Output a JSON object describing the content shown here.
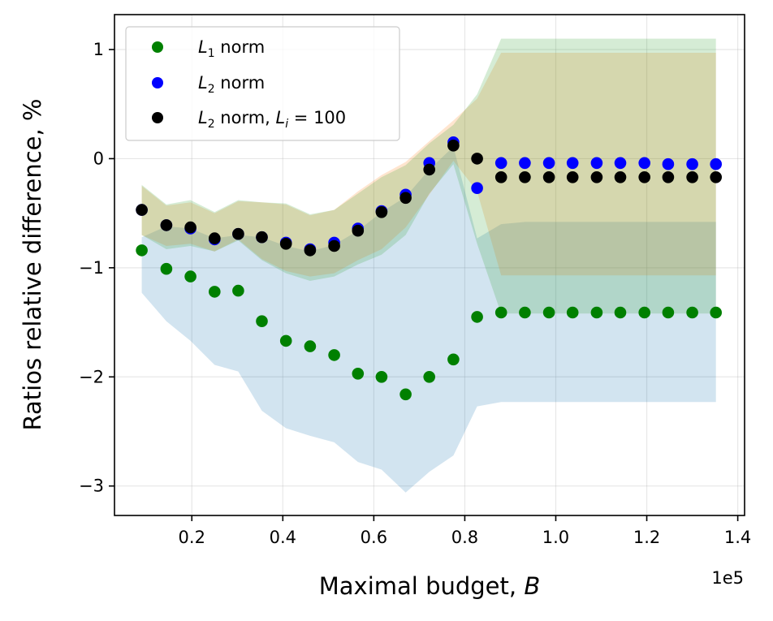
{
  "chart_data": {
    "type": "scatter",
    "title": "",
    "xlabel": "Maximal budget, B",
    "ylabel": "Ratios relative difference, %",
    "x_offset_label": "1e5",
    "xlim": [
      0.03,
      1.415
    ],
    "ylim": [
      -3.27,
      1.32
    ],
    "xticks": [
      0.2,
      0.4,
      0.6,
      0.8,
      1.0,
      1.2,
      1.4
    ],
    "xtick_labels": [
      "0.2",
      "0.4",
      "0.6",
      "0.8",
      "1.0",
      "1.2",
      "1.4"
    ],
    "yticks": [
      -3,
      -2,
      -1,
      0,
      1
    ],
    "ytick_labels": [
      "−3",
      "−2",
      "−1",
      "0",
      "1"
    ],
    "grid": true,
    "legend_position": "top-left",
    "x": [
      0.09,
      0.144,
      0.197,
      0.25,
      0.302,
      0.354,
      0.407,
      0.46,
      0.513,
      0.565,
      0.617,
      0.67,
      0.722,
      0.775,
      0.827,
      0.88,
      0.932,
      0.985,
      1.037,
      1.09,
      1.142,
      1.195,
      1.247,
      1.3,
      1.352
    ],
    "series": [
      {
        "name": "L1 norm",
        "color": "#008000",
        "band_color": "#2ca02c",
        "values": [
          -0.84,
          -1.01,
          -1.08,
          -1.22,
          -1.21,
          -1.49,
          -1.67,
          -1.72,
          -1.8,
          -1.97,
          -2.0,
          -2.16,
          -2.0,
          -1.84,
          -1.45,
          -1.41,
          -1.41,
          -1.41,
          -1.41,
          -1.41,
          -1.41,
          -1.41,
          -1.41,
          -1.41,
          -1.41
        ],
        "band_low": [
          -0.7,
          -0.83,
          -0.8,
          -0.85,
          -0.75,
          -0.93,
          -1.05,
          -1.12,
          -1.08,
          -0.97,
          -0.88,
          -0.7,
          -0.32,
          -0.05,
          -0.78,
          -1.42,
          -1.42,
          -1.42,
          -1.42,
          -1.42,
          -1.42,
          -1.42,
          -1.42,
          -1.42,
          -1.42
        ],
        "band_high": [
          -0.24,
          -0.42,
          -0.38,
          -0.49,
          -0.38,
          -0.4,
          -0.41,
          -0.51,
          -0.47,
          -0.32,
          -0.17,
          -0.06,
          0.14,
          0.31,
          0.59,
          1.1,
          1.1,
          1.1,
          1.1,
          1.1,
          1.1,
          1.1,
          1.1,
          1.1,
          1.1
        ]
      },
      {
        "name": "L2 norm",
        "color": "#0000ff",
        "band_color": "#ff7f0e",
        "values": [
          -0.47,
          -0.61,
          -0.64,
          -0.74,
          -0.69,
          -0.72,
          -0.77,
          -0.83,
          -0.77,
          -0.64,
          -0.48,
          -0.33,
          -0.04,
          0.15,
          -0.27,
          -0.04,
          -0.04,
          -0.04,
          -0.04,
          -0.04,
          -0.04,
          -0.04,
          -0.05,
          -0.05,
          -0.05
        ],
        "band_low": [
          -0.7,
          -0.8,
          -0.78,
          -0.85,
          -0.74,
          -0.92,
          -1.03,
          -1.08,
          -1.05,
          -0.93,
          -0.83,
          -0.63,
          -0.33,
          -0.02,
          -0.3,
          -1.07,
          -1.07,
          -1.07,
          -1.07,
          -1.07,
          -1.07,
          -1.07,
          -1.07,
          -1.07,
          -1.07
        ],
        "band_high": [
          -0.25,
          -0.43,
          -0.4,
          -0.5,
          -0.39,
          -0.4,
          -0.42,
          -0.52,
          -0.47,
          -0.3,
          -0.15,
          -0.03,
          0.16,
          0.35,
          0.55,
          0.97,
          0.97,
          0.97,
          0.97,
          0.97,
          0.97,
          0.97,
          0.97,
          0.97,
          0.97
        ]
      },
      {
        "name": "L2 norm, Li = 100",
        "color": "#000000",
        "band_color": "#1f77b4",
        "values": [
          -0.47,
          -0.61,
          -0.63,
          -0.73,
          -0.69,
          -0.72,
          -0.78,
          -0.84,
          -0.8,
          -0.66,
          -0.49,
          -0.36,
          -0.1,
          0.12,
          0.0,
          -0.17,
          -0.17,
          -0.17,
          -0.17,
          -0.17,
          -0.17,
          -0.17,
          -0.17,
          -0.17,
          -0.17
        ],
        "band_low": [
          -1.23,
          -1.49,
          -1.67,
          -1.89,
          -1.95,
          -2.31,
          -2.47,
          -2.54,
          -2.6,
          -2.78,
          -2.85,
          -3.06,
          -2.87,
          -2.72,
          -2.27,
          -2.23,
          -2.23,
          -2.23,
          -2.23,
          -2.23,
          -2.23,
          -2.23,
          -2.23,
          -2.23,
          -2.23
        ],
        "band_high": [
          -0.72,
          -0.62,
          -0.64,
          -0.73,
          -0.7,
          -0.72,
          -0.8,
          -0.85,
          -0.79,
          -0.66,
          -0.49,
          -0.35,
          -0.1,
          0.11,
          -0.73,
          -0.6,
          -0.58,
          -0.58,
          -0.58,
          -0.58,
          -0.58,
          -0.58,
          -0.58,
          -0.58,
          -0.58
        ]
      }
    ]
  },
  "legend": {
    "items": [
      {
        "base": "L",
        "sub": "1",
        "rest": " norm",
        "color": "#008000"
      },
      {
        "base": "L",
        "sub": "2",
        "rest": " norm",
        "color": "#0000ff"
      },
      {
        "base": "L",
        "sub": "2",
        "rest": " norm, ",
        "base2": "L",
        "sub2": "i",
        "rest2": " = 100",
        "color": "#000000"
      }
    ]
  },
  "labels": {
    "xlabel_text": "Maximal budget, ",
    "xlabel_var": "B",
    "ylabel_text": "Ratios relative difference, %",
    "offset": "1e5"
  }
}
